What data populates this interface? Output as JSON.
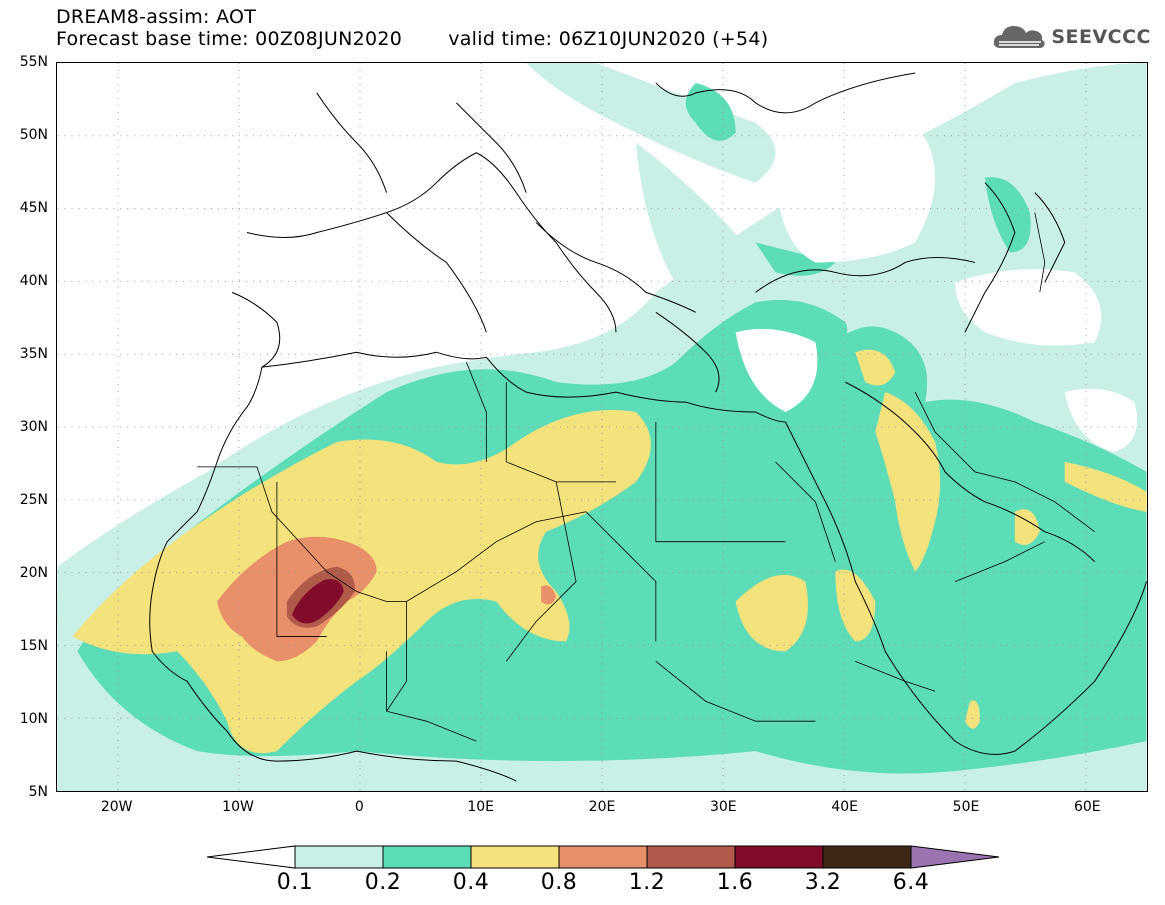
{
  "title": {
    "line1": "DREAM8-assim: AOT",
    "forecast_base": "Forecast base time: 00Z08JUN2020",
    "valid_time": "valid time: 06Z10JUN2020 (+54)"
  },
  "logo": {
    "text": "SEEVCCC",
    "icon": "cloud-icon"
  },
  "map": {
    "lon_range": [
      -25,
      65
    ],
    "lat_range": [
      5,
      55
    ],
    "grid": "dotted",
    "lat_labels": [
      "55N",
      "50N",
      "45N",
      "40N",
      "35N",
      "30N",
      "25N",
      "20N",
      "15N",
      "10N",
      "5N"
    ],
    "lon_labels": [
      "20W",
      "10W",
      "0",
      "10E",
      "20E",
      "30E",
      "40E",
      "50E",
      "60E"
    ]
  },
  "colorbar": {
    "labels": [
      "0.1",
      "0.2",
      "0.4",
      "0.8",
      "1.2",
      "1.6",
      "3.2",
      "6.4"
    ],
    "colors": [
      "#c8f0e6",
      "#5ddcb8",
      "#f4e27c",
      "#e8906a",
      "#b05a4a",
      "#820a2a",
      "#3c2814",
      "#9b73b0"
    ]
  }
}
